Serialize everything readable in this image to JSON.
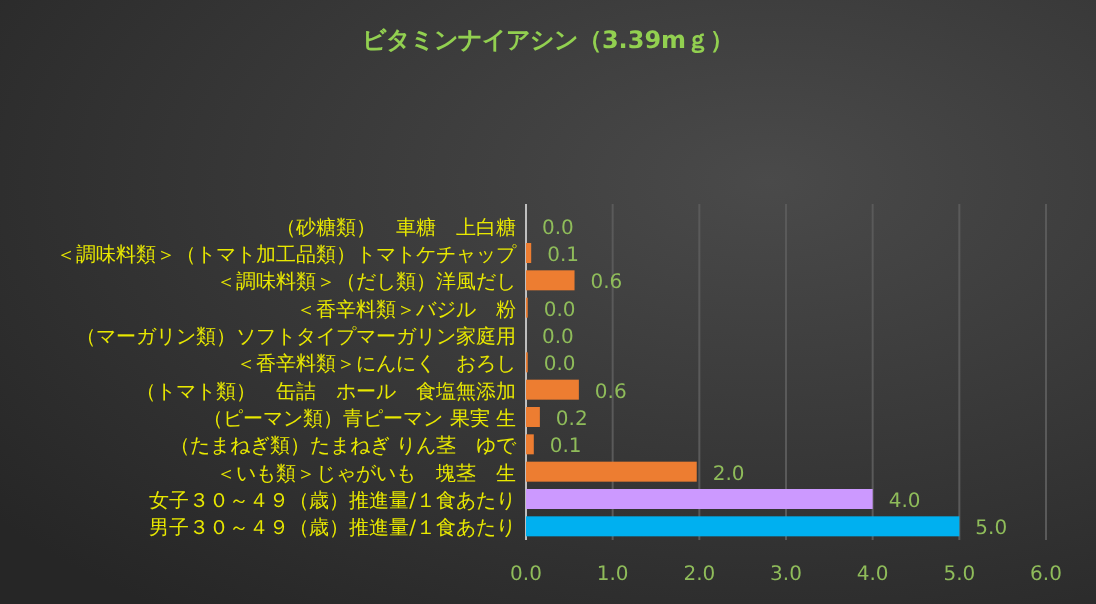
{
  "chart_data": {
    "type": "bar",
    "orientation": "horizontal",
    "title": "ビタミンナイアシン（3.39mｇ）",
    "categories": [
      "（砂糖類）　車糖　上白糖",
      "＜調味料類＞（トマト加工品類）トマトケチャップ",
      "＜調味料類＞（だし類）洋風だし",
      "＜香辛料類＞バジル　粉",
      "（マーガリン類）ソフトタイプマーガリン家庭用",
      "＜香辛料類＞にんにく　おろし",
      "（トマト類）　缶詰　ホール　食塩無添加",
      "（ピーマン類）青ピーマン 果実 生",
      "（たまねぎ類）たまねぎ りん茎　ゆで",
      "＜いも類＞じゃがいも　塊茎　生",
      "女子３０～４９（歳）推進量/１食あたり",
      "男子３０～４９（歳）推進量/１食あたり"
    ],
    "values": [
      0.0,
      0.06,
      0.56,
      0.02,
      0.0,
      0.02,
      0.61,
      0.16,
      0.09,
      1.97,
      4.0,
      5.0
    ],
    "value_labels": [
      "0.0",
      "0.1",
      "0.6",
      "0.0",
      "0.0",
      "0.0",
      "0.6",
      "0.2",
      "0.1",
      "2.0",
      "4.0",
      "5.0"
    ],
    "colors": [
      "#ed7d31",
      "#ed7d31",
      "#ed7d31",
      "#ed7d31",
      "#ed7d31",
      "#ed7d31",
      "#ed7d31",
      "#ed7d31",
      "#ed7d31",
      "#ed7d31",
      "#cc99ff",
      "#00b0f0"
    ],
    "xlim": [
      0,
      6
    ],
    "xticks": [
      {
        "value": 0,
        "label": "0.0"
      },
      {
        "value": 1,
        "label": "1.0"
      },
      {
        "value": 2,
        "label": "2.0"
      },
      {
        "value": 3,
        "label": "3.0"
      },
      {
        "value": 4,
        "label": "4.0"
      },
      {
        "value": 5,
        "label": "5.0"
      },
      {
        "value": 6,
        "label": "6.0"
      }
    ],
    "grid": "x"
  }
}
